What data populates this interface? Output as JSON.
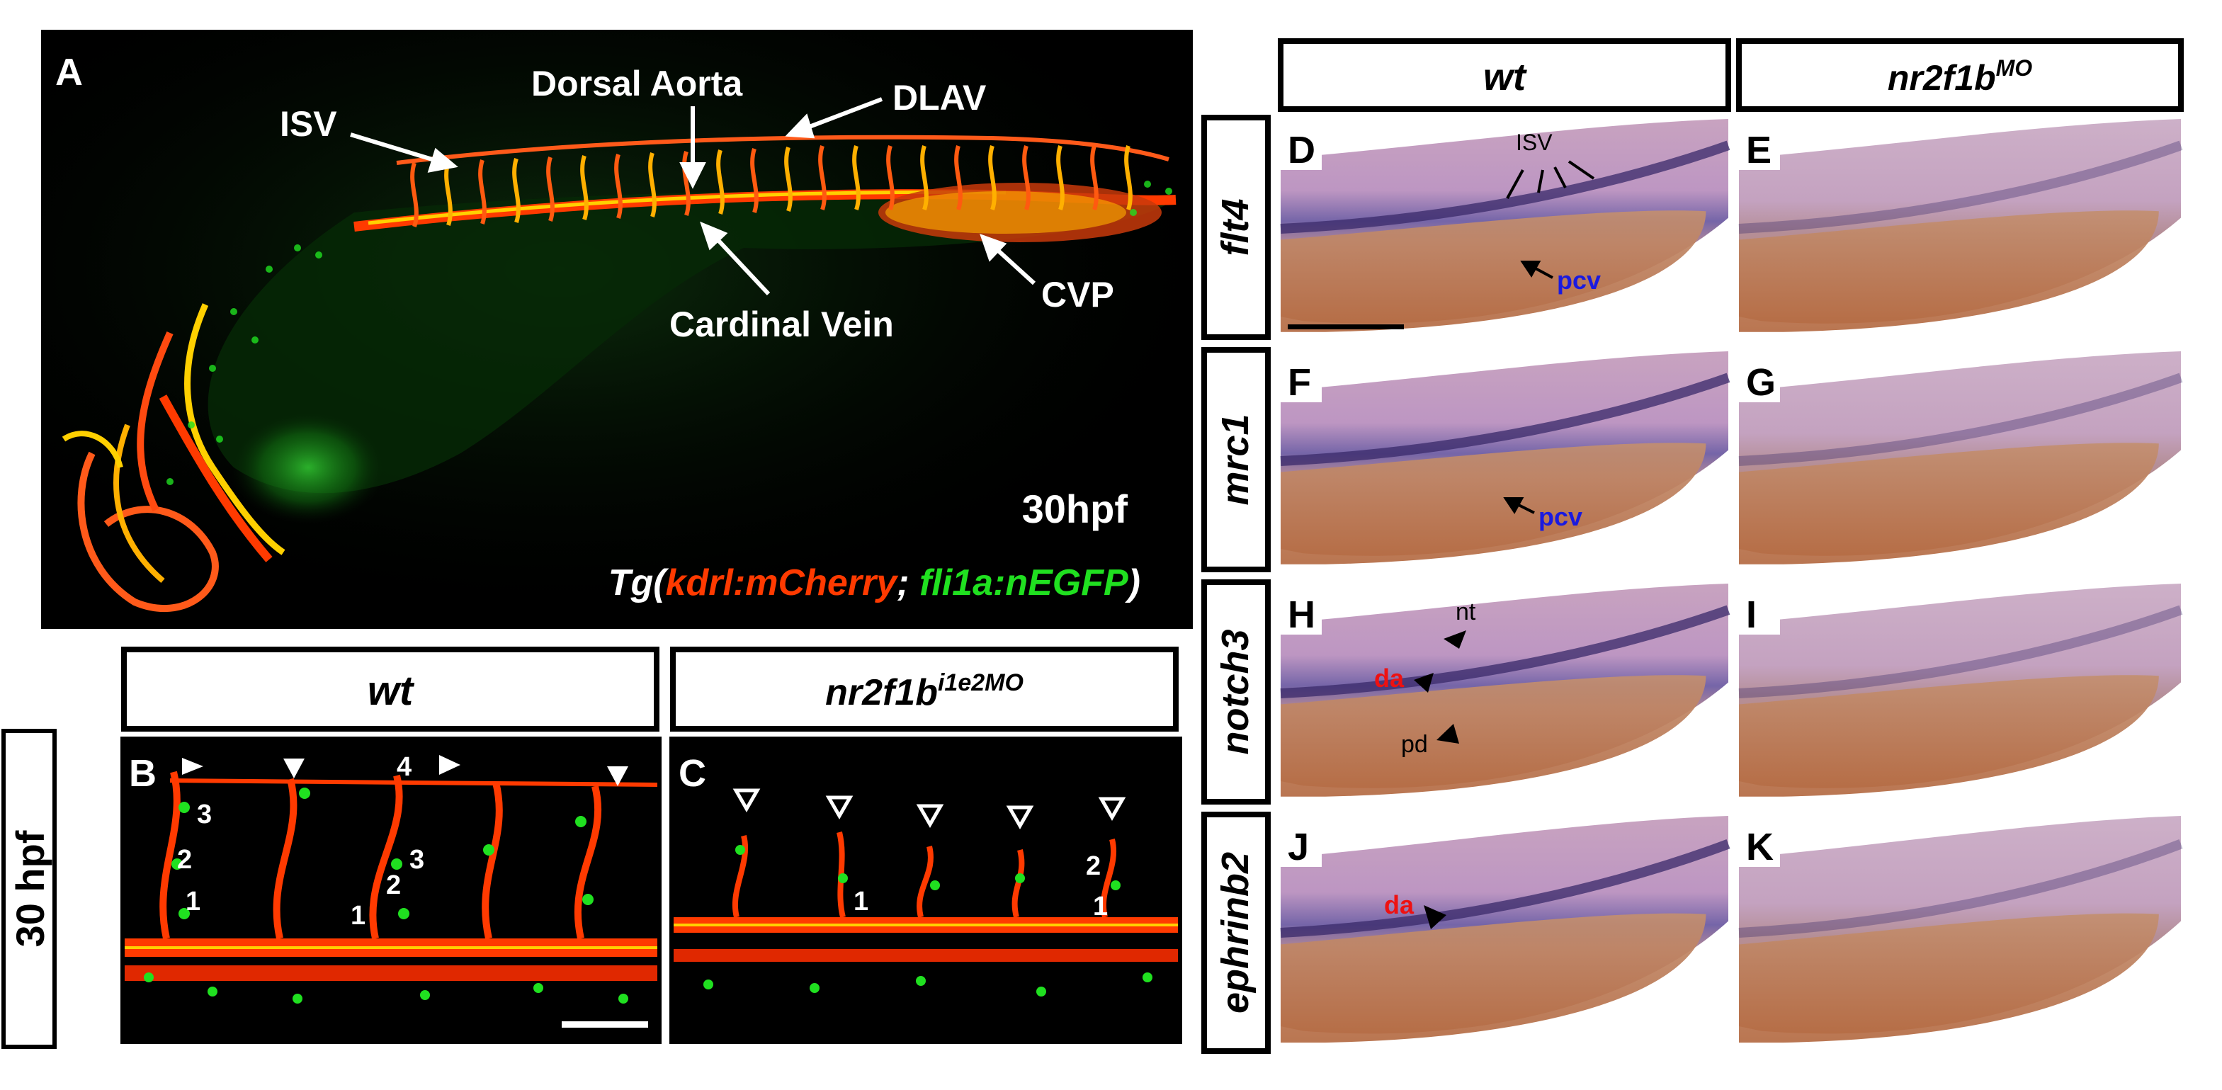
{
  "panel_A": {
    "letter": "A",
    "labels": {
      "isv": "ISV",
      "dorsal_aorta": "Dorsal Aorta",
      "dlav": "DLAV",
      "cardinal_vein": "Cardinal Vein",
      "cvp": "CVP"
    },
    "stage": "30hpf",
    "transgene": {
      "prefix": "Tg(",
      "red": "kdrl:mCherry",
      "sep": "; ",
      "green": "fli1a:nEGFP",
      "suffix": ")"
    }
  },
  "panels_BC": {
    "side_label": "30 hpf",
    "b_header": "wt",
    "c_header_base": "nr2f1b",
    "c_header_sup": "i1e2MO",
    "b_letter": "B",
    "c_letter": "C",
    "b_numbers": [
      "3",
      "2",
      "1",
      "4",
      "3",
      "2",
      "1"
    ],
    "c_numbers": [
      "1",
      "2",
      "1"
    ]
  },
  "panels_DK": {
    "col_wt": "wt",
    "col_mo_base": "nr2f1b",
    "col_mo_sup": "MO",
    "genes": [
      "flt4",
      "mrc1",
      "notch3",
      "ephrinb2"
    ],
    "left_letters": [
      "D",
      "F",
      "H",
      "J"
    ],
    "right_letters": [
      "E",
      "G",
      "I",
      "K"
    ],
    "annotations": {
      "isv": "ISV",
      "pcv_d": "pcv",
      "pcv_f": "pcv",
      "nt": "nt",
      "da_h": "da",
      "pd": "pd",
      "da_j": "da"
    }
  },
  "colors": {
    "figure_bg": "#ffffff",
    "fluor_bg": "#000000",
    "mcherry_red": "#ff3a00",
    "egfp_green": "#20e020",
    "vessel_yellow": "#ffd000",
    "ish_purple": "#3a2a6a",
    "embryo_tan": "#c08060",
    "annotation_blue": "#1a1ae0",
    "annotation_red": "#ee1111"
  }
}
